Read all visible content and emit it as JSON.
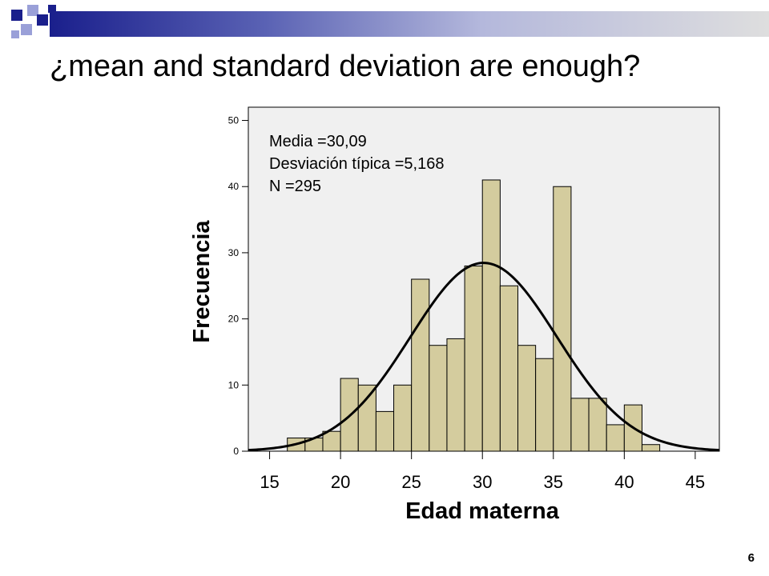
{
  "slide": {
    "title": "¿mean and standard deviation are enough?",
    "page_number": "6",
    "colors": {
      "accent_navy": "#1a1f8c",
      "accent_periwinkle": "#9aa0d8",
      "accent_gray": "#c8c8c8"
    }
  },
  "chart_data": {
    "type": "bar",
    "xlabel": "Edad materna",
    "ylabel": "Frecuencia",
    "x_ticks": [
      "15",
      "20",
      "25",
      "30",
      "35",
      "40",
      "45"
    ],
    "y_ticks": [
      "0",
      "10",
      "20",
      "30",
      "40",
      "50"
    ],
    "xlim": [
      13.5,
      46.7
    ],
    "ylim": [
      0,
      52
    ],
    "bin_width": 1.25,
    "bin_starts": [
      16.25,
      17.5,
      18.75,
      20,
      21.25,
      22.5,
      23.75,
      25,
      26.25,
      27.5,
      28.75,
      30,
      31.25,
      32.5,
      33.75,
      35,
      36.25,
      37.5,
      38.75,
      40,
      41.25
    ],
    "values": [
      2,
      2,
      3,
      11,
      10,
      6,
      10,
      26,
      16,
      17,
      28,
      41,
      25,
      16,
      14,
      40,
      8,
      8,
      4,
      7,
      1
    ],
    "bar_color": "#d4cc9e",
    "plot_background": "#f0f0f0",
    "grid": false,
    "normal_curve": {
      "mean": 30.09,
      "sd": 5.168,
      "n": 295
    },
    "annotation": [
      "Media =30,09",
      "Desviación típica =5,168",
      "N =295"
    ]
  }
}
